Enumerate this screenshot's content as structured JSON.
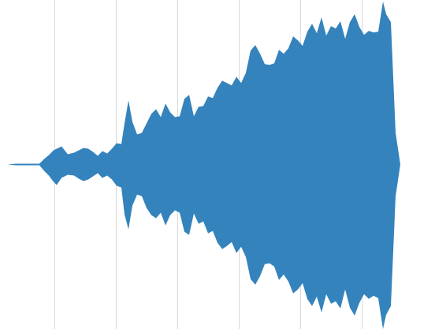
{
  "chart_data": {
    "type": "area",
    "style": "symmetric streamgraph (mirrored about a center baseline)",
    "grid": {
      "vertical": true,
      "horizontal": false
    },
    "legend": "none",
    "axes_visible": false,
    "title": "",
    "xlabel": "",
    "ylabel": "",
    "xlim": [
      0,
      552
    ],
    "ylim": [
      -208,
      208
    ],
    "x_gridlines": [
      69,
      147,
      225,
      303,
      381,
      459
    ],
    "colors": {
      "fill": "#3483BC",
      "grid": "#D9D9D9",
      "background": "#FFFFFF"
    },
    "series": [
      {
        "x": [
          0,
          10,
          20,
          30,
          40,
          50,
          56,
          62,
          68,
          72,
          78,
          86,
          94,
          100,
          106,
          112,
          118,
          124,
          130,
          136,
          142,
          148,
          154,
          158,
          163,
          168,
          174,
          180,
          186,
          192,
          198,
          204,
          210,
          216,
          222,
          228,
          234,
          240,
          246,
          252,
          258,
          264,
          270,
          276,
          282,
          288,
          294,
          300,
          306,
          312,
          318,
          324,
          330,
          336,
          342,
          348,
          354,
          360,
          366,
          372,
          378,
          384,
          390,
          396,
          402,
          408,
          414,
          420,
          426,
          432,
          438,
          444,
          450,
          456,
          462,
          468,
          474,
          480,
          486,
          490,
          496,
          502,
          508,
          514,
          520,
          524,
          528,
          532,
          536,
          540,
          544
        ],
        "upper": [
          0,
          0,
          1,
          1,
          1,
          1,
          7,
          12,
          18,
          20,
          23,
          13,
          15,
          18,
          21,
          20,
          16,
          11,
          17,
          14,
          20,
          27,
          26,
          52,
          81,
          54,
          38,
          40,
          52,
          64,
          70,
          60,
          77,
          66,
          60,
          61,
          83,
          88,
          61,
          73,
          74,
          86,
          84,
          97,
          106,
          103,
          100,
          111,
          103,
          116,
          144,
          151,
          140,
          127,
          126,
          128,
          145,
          140,
          147,
          162,
          157,
          150,
          168,
          178,
          166,
          186,
          163,
          175,
          172,
          181,
          159,
          180,
          190,
          174,
          164,
          169,
          167,
          168,
          206,
          190,
          180,
          40,
          0,
          0,
          0,
          0,
          0,
          0,
          0,
          0,
          0
        ],
        "lower": [
          0,
          0,
          -1,
          -1,
          -1,
          -1,
          -8,
          -14,
          -22,
          -26,
          -17,
          -13,
          -14,
          -18,
          -21,
          -19,
          -15,
          -11,
          -17,
          -14,
          -19,
          -27,
          -29,
          -63,
          -82,
          -52,
          -38,
          -40,
          -55,
          -64,
          -68,
          -61,
          -77,
          -64,
          -58,
          -61,
          -85,
          -89,
          -62,
          -75,
          -72,
          -87,
          -84,
          -99,
          -107,
          -103,
          -98,
          -112,
          -104,
          -117,
          -145,
          -152,
          -141,
          -126,
          -125,
          -129,
          -146,
          -139,
          -148,
          -163,
          -158,
          -150,
          -170,
          -179,
          -167,
          -187,
          -164,
          -176,
          -173,
          -182,
          -158,
          -181,
          -191,
          -175,
          -164,
          -170,
          -166,
          -169,
          -208,
          -190,
          -179,
          -40,
          0,
          0,
          0,
          0,
          0,
          0,
          0,
          0,
          0
        ]
      }
    ]
  }
}
